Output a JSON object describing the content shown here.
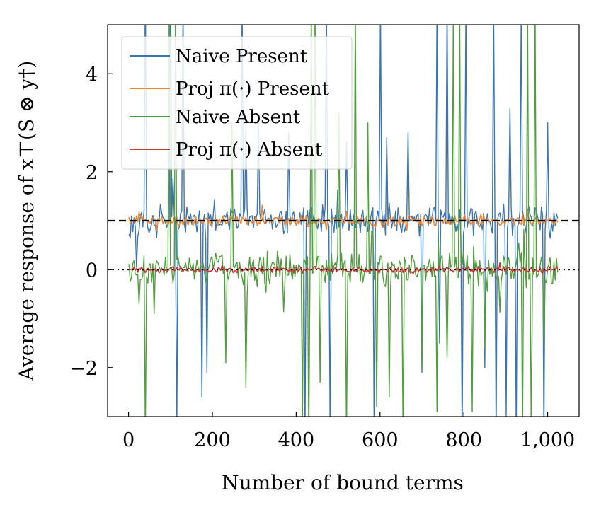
{
  "chart_data": {
    "type": "line",
    "xlabel": "Number of bound terms",
    "ylabel": "Average response of x⊤(S ⊗ y†)",
    "xlim": [
      -50,
      1075
    ],
    "ylim": [
      -3,
      5
    ],
    "x_ticks": [
      0,
      200,
      400,
      600,
      800,
      1000
    ],
    "x_tick_labels": [
      "0",
      "200",
      "400",
      "600",
      "800",
      "1,000"
    ],
    "y_ticks": [
      -2,
      0,
      2,
      4
    ],
    "y_tick_labels": [
      "−2",
      "0",
      "2",
      "4"
    ],
    "grid": false,
    "legend_position": "top-left",
    "reference_lines": [
      {
        "y": 1,
        "style": "dashed",
        "color": "#000000"
      },
      {
        "y": 0,
        "style": "dotted",
        "color": "#000000"
      }
    ],
    "x_start": 1,
    "x_end": 1024,
    "x_step": 3,
    "series": [
      {
        "name": "Naive Present",
        "color": "#3b75af",
        "center": 1.0,
        "noise": 0.28,
        "spikes": [
          [
            40,
            6.0
          ],
          [
            100,
            6.0
          ],
          [
            115,
            -3.5
          ],
          [
            130,
            5.5
          ],
          [
            175,
            -2.6
          ],
          [
            185,
            -2.1
          ],
          [
            270,
            5.5
          ],
          [
            280,
            3.0
          ],
          [
            310,
            3.0
          ],
          [
            380,
            2.8
          ],
          [
            420,
            -3.5
          ],
          [
            470,
            5.5
          ],
          [
            480,
            -3.5
          ],
          [
            520,
            2.6
          ],
          [
            585,
            -3.5
          ],
          [
            600,
            5.5
          ],
          [
            615,
            2.7
          ],
          [
            665,
            2.8
          ],
          [
            700,
            -2.1
          ],
          [
            735,
            5.5
          ],
          [
            740,
            -1.5
          ],
          [
            760,
            5.5
          ],
          [
            795,
            -3.5
          ],
          [
            805,
            5.5
          ],
          [
            850,
            -2.0
          ],
          [
            870,
            5.5
          ],
          [
            875,
            -3.5
          ],
          [
            900,
            -3.0
          ],
          [
            910,
            3.3
          ],
          [
            925,
            -3.5
          ],
          [
            935,
            5.5
          ],
          [
            990,
            -3.5
          ],
          [
            1000,
            3.0
          ]
        ]
      },
      {
        "name": "Proj π(·) Present",
        "color": "#ef8636",
        "center": 1.0,
        "noise": 0.1,
        "spikes": []
      },
      {
        "name": "Naive Absent",
        "color": "#519e3e",
        "center": 0.0,
        "noise": 0.32,
        "spikes": [
          [
            25,
            -0.7
          ],
          [
            40,
            -3.5
          ],
          [
            60,
            -0.9
          ],
          [
            95,
            5.5
          ],
          [
            110,
            5.5
          ],
          [
            230,
            -1.9
          ],
          [
            245,
            3.0
          ],
          [
            280,
            -2.4
          ],
          [
            415,
            -3.0
          ],
          [
            430,
            -3.5
          ],
          [
            435,
            5.5
          ],
          [
            445,
            5.5
          ],
          [
            455,
            -2.3
          ],
          [
            500,
            3.2
          ],
          [
            520,
            -3.5
          ],
          [
            540,
            5.5
          ],
          [
            570,
            3.0
          ],
          [
            590,
            -2.8
          ],
          [
            620,
            -2.6
          ],
          [
            655,
            -3.5
          ],
          [
            700,
            -2.0
          ],
          [
            735,
            -2.9
          ],
          [
            760,
            -1.8
          ],
          [
            775,
            5.5
          ],
          [
            790,
            5.5
          ],
          [
            820,
            -2.9
          ],
          [
            850,
            -1.6
          ],
          [
            940,
            -3.5
          ],
          [
            950,
            5.5
          ],
          [
            960,
            -3.5
          ],
          [
            970,
            5.5
          ],
          [
            990,
            -1.5
          ]
        ]
      },
      {
        "name": "Proj π(·) Absent",
        "color": "#c53932",
        "center": 0.0,
        "noise": 0.06,
        "spikes": []
      }
    ]
  }
}
